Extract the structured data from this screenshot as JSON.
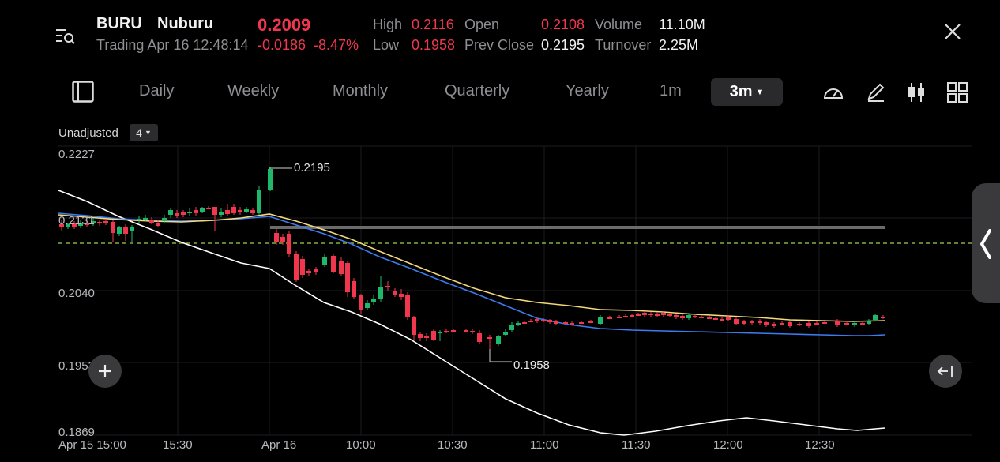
{
  "header": {
    "symbol": "BURU",
    "name": "Nuburu",
    "price": "0.2009",
    "status": "Trading Apr 16 12:48:14",
    "change": "-0.0186",
    "change_pct": "-8.47%",
    "stats": {
      "high_label": "High",
      "high": "0.2116",
      "low_label": "Low",
      "low": "0.1958",
      "open_label": "Open",
      "open": "0.2108",
      "prev_close_label": "Prev Close",
      "prev_close": "0.2195",
      "volume_label": "Volume",
      "volume": "11.10M",
      "turnover_label": "Turnover",
      "turnover": "2.25M"
    }
  },
  "toolbar": {
    "tabs": [
      "Daily",
      "Weekly",
      "Monthly",
      "Quarterly",
      "Yearly",
      "1m"
    ],
    "active_tab": "3m"
  },
  "chart_options": {
    "adjust_label": "Unadjusted",
    "indicator_count": "4"
  },
  "chart_data": {
    "type": "candlestick",
    "y_ticks": [
      "0.2227",
      "0.2131",
      "0.2040",
      "0.1953",
      "0.1869"
    ],
    "x_ticks": [
      "Apr 15 15:00",
      "15:30",
      "Apr 16",
      "10:00",
      "10:30",
      "11:00",
      "11:30",
      "12:00",
      "12:30"
    ],
    "annotations": {
      "high": "0.2195",
      "low": "0.1958"
    },
    "prev_close_line": 0.2195,
    "colors": {
      "up": "#1fb86a",
      "down": "#f0374e",
      "ma_yellow": "#f3d97a",
      "ma_blue": "#3d7cf0",
      "ma_white": "#ffffff",
      "prev_close": "#9bd34a"
    }
  }
}
